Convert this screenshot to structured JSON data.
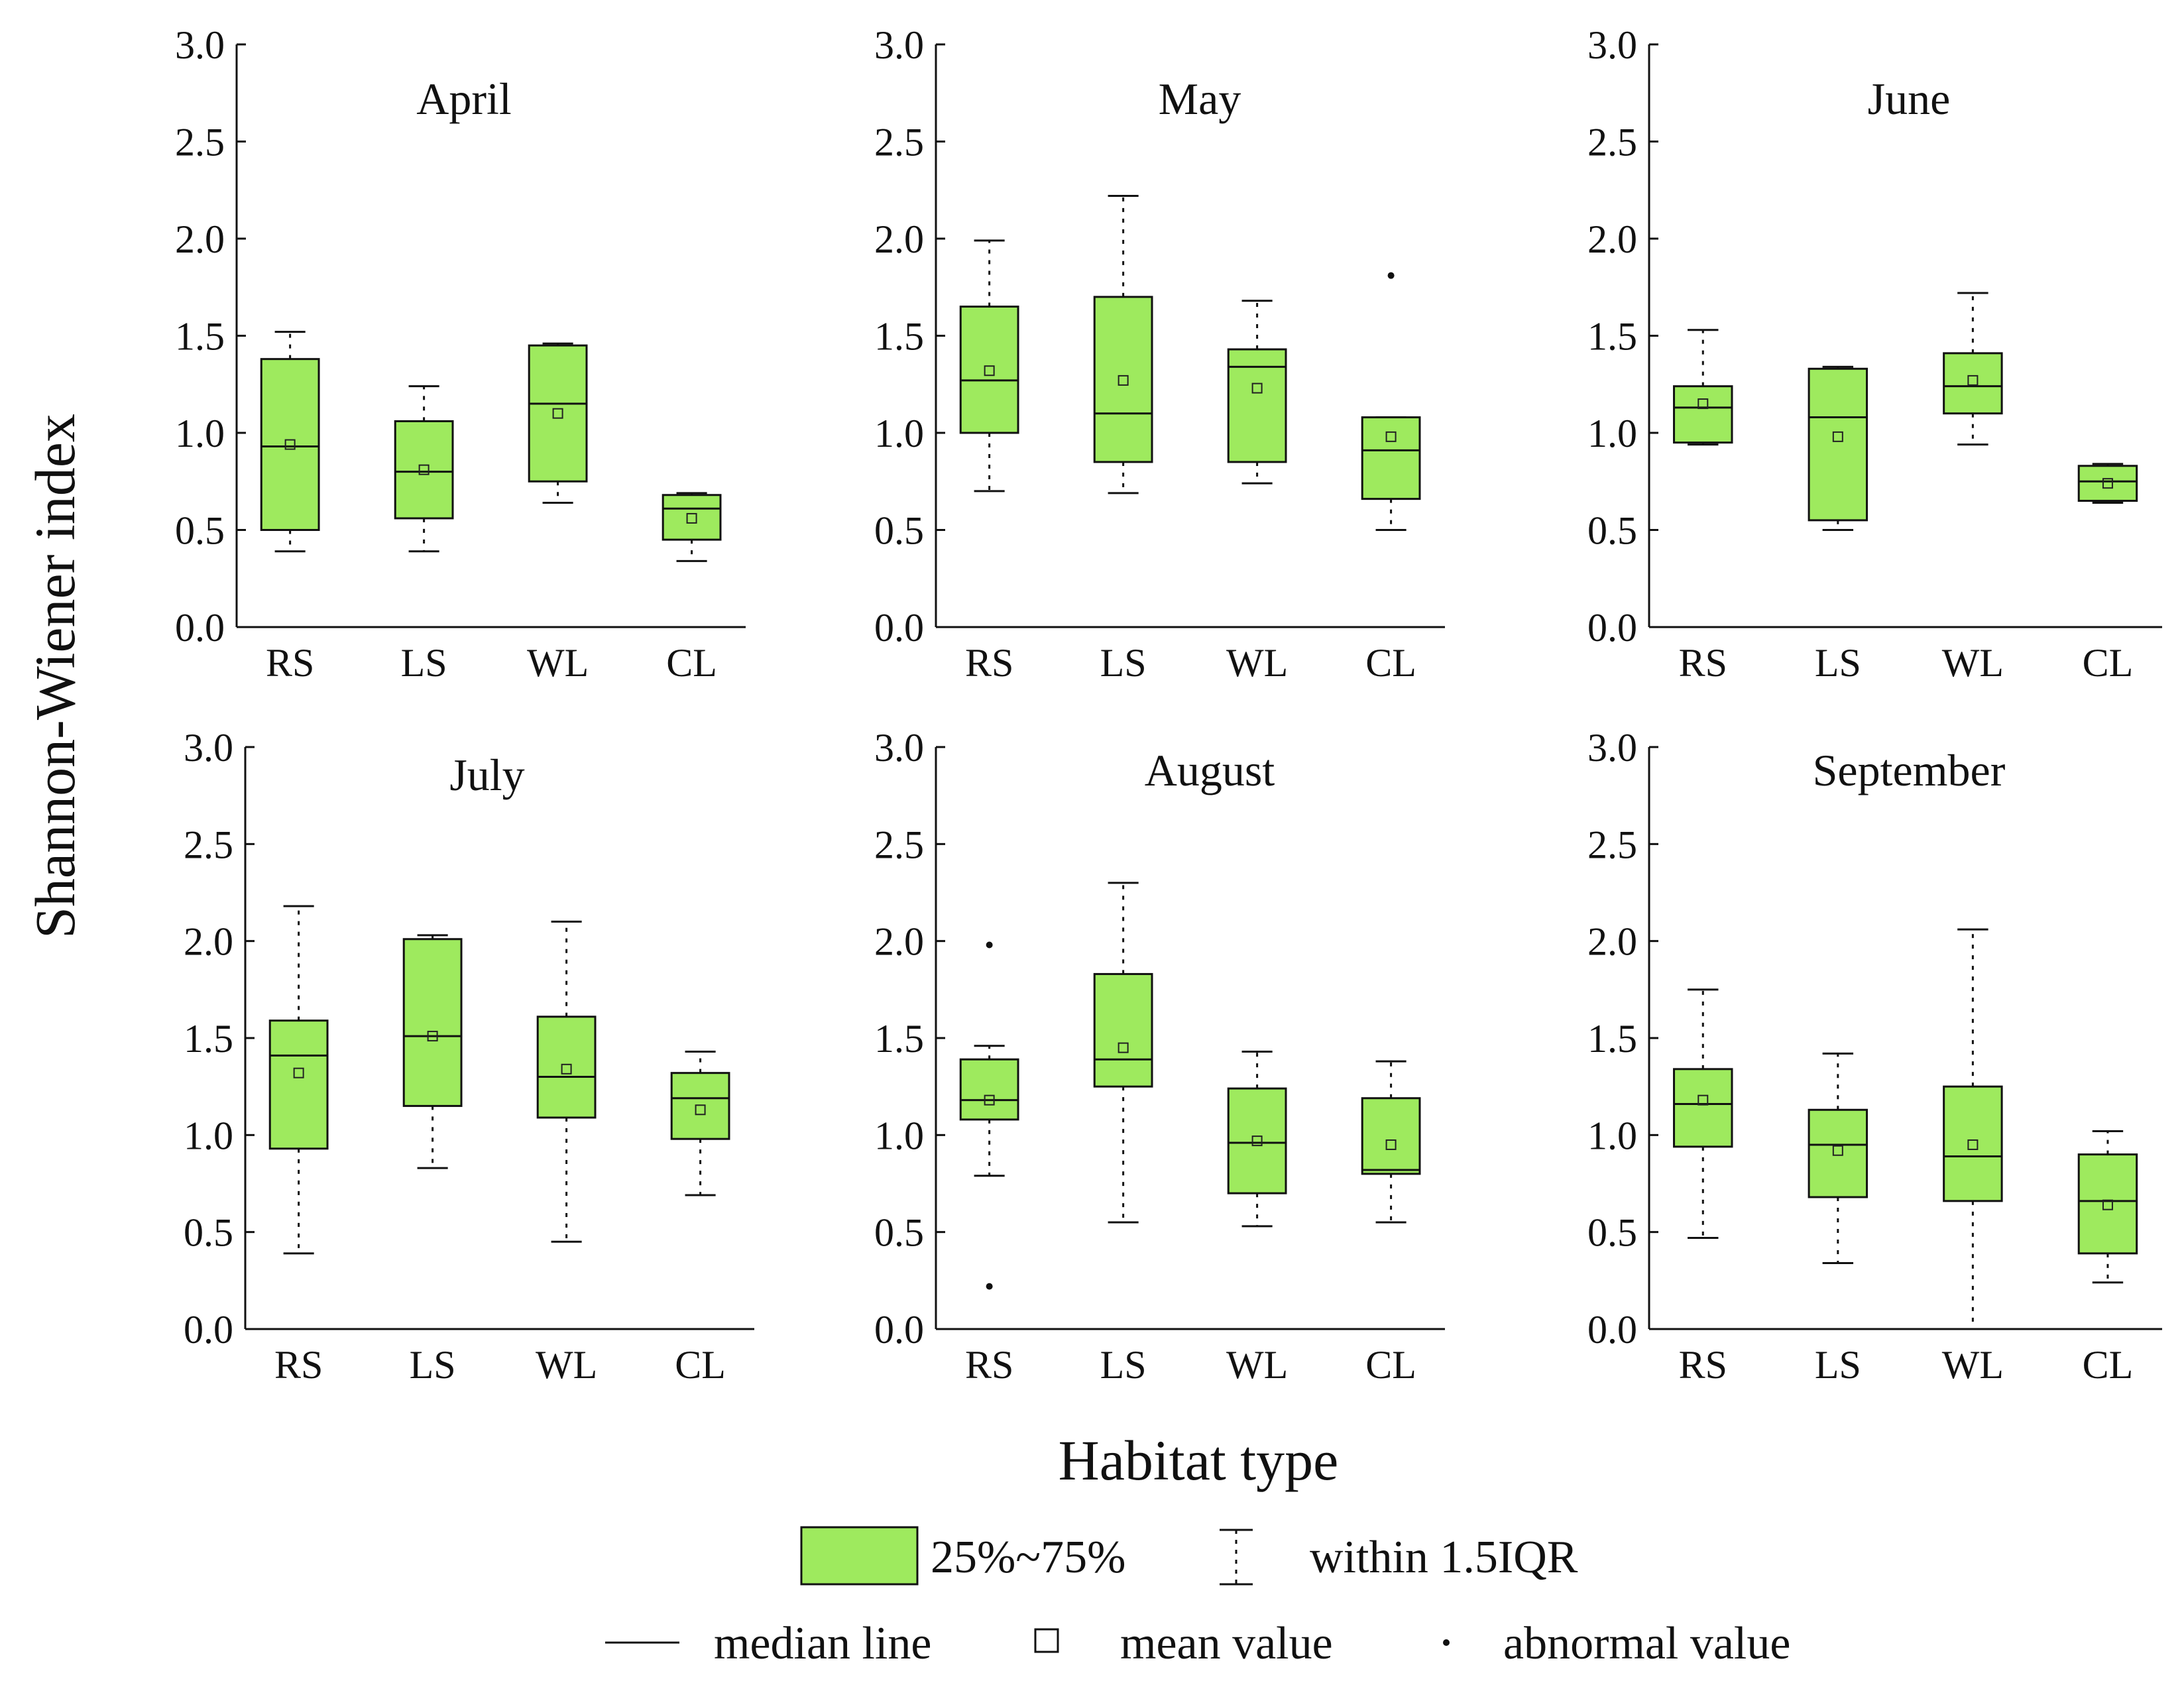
{
  "chart_data": {
    "type": "box",
    "ylabel": "Shannon-Wiener index",
    "xlabel": "Habitat type",
    "categories": [
      "RS",
      "LS",
      "WL",
      "CL"
    ],
    "ylim": [
      0,
      3
    ],
    "yticks": [
      "0.0",
      "0.5",
      "1.0",
      "1.5",
      "2.0",
      "2.5",
      "3.0"
    ],
    "box_color": "#9eea5e",
    "panels": [
      {
        "title": "April",
        "boxes": [
          {
            "category": "RS",
            "whisker_low": 0.39,
            "q1": 0.5,
            "median": 0.93,
            "q3": 1.38,
            "whisker_high": 1.52,
            "mean": 0.94,
            "outliers": []
          },
          {
            "category": "LS",
            "whisker_low": 0.39,
            "q1": 0.56,
            "median": 0.8,
            "q3": 1.06,
            "whisker_high": 1.24,
            "mean": 0.81,
            "outliers": []
          },
          {
            "category": "WL",
            "whisker_low": 0.64,
            "q1": 0.75,
            "median": 1.15,
            "q3": 1.45,
            "whisker_high": 1.46,
            "mean": 1.1,
            "outliers": []
          },
          {
            "category": "CL",
            "whisker_low": 0.34,
            "q1": 0.45,
            "median": 0.61,
            "q3": 0.68,
            "whisker_high": 0.69,
            "mean": 0.56,
            "outliers": []
          }
        ]
      },
      {
        "title": "May",
        "boxes": [
          {
            "category": "RS",
            "whisker_low": 0.7,
            "q1": 1.0,
            "median": 1.27,
            "q3": 1.65,
            "whisker_high": 1.99,
            "mean": 1.32,
            "outliers": []
          },
          {
            "category": "LS",
            "whisker_low": 0.69,
            "q1": 0.85,
            "median": 1.1,
            "q3": 1.7,
            "whisker_high": 2.22,
            "mean": 1.27,
            "outliers": []
          },
          {
            "category": "WL",
            "whisker_low": 0.74,
            "q1": 0.85,
            "median": 1.34,
            "q3": 1.43,
            "whisker_high": 1.68,
            "mean": 1.23,
            "outliers": []
          },
          {
            "category": "CL",
            "whisker_low": 0.5,
            "q1": 0.66,
            "median": 0.91,
            "q3": 1.08,
            "whisker_high": 1.08,
            "mean": 0.98,
            "outliers": [
              1.81
            ]
          }
        ]
      },
      {
        "title": "June",
        "boxes": [
          {
            "category": "RS",
            "whisker_low": 0.94,
            "q1": 0.95,
            "median": 1.13,
            "q3": 1.24,
            "whisker_high": 1.53,
            "mean": 1.15,
            "outliers": []
          },
          {
            "category": "LS",
            "whisker_low": 0.5,
            "q1": 0.55,
            "median": 1.08,
            "q3": 1.33,
            "whisker_high": 1.34,
            "mean": 0.98,
            "outliers": []
          },
          {
            "category": "WL",
            "whisker_low": 0.94,
            "q1": 1.1,
            "median": 1.24,
            "q3": 1.41,
            "whisker_high": 1.72,
            "mean": 1.27,
            "outliers": []
          },
          {
            "category": "CL",
            "whisker_low": 0.64,
            "q1": 0.65,
            "median": 0.75,
            "q3": 0.83,
            "whisker_high": 0.84,
            "mean": 0.74,
            "outliers": []
          }
        ]
      },
      {
        "title": "July",
        "boxes": [
          {
            "category": "RS",
            "whisker_low": 0.39,
            "q1": 0.93,
            "median": 1.41,
            "q3": 1.59,
            "whisker_high": 2.18,
            "mean": 1.32,
            "outliers": []
          },
          {
            "category": "LS",
            "whisker_low": 0.83,
            "q1": 1.15,
            "median": 1.51,
            "q3": 2.01,
            "whisker_high": 2.03,
            "mean": 1.51,
            "outliers": []
          },
          {
            "category": "WL",
            "whisker_low": 0.45,
            "q1": 1.09,
            "median": 1.3,
            "q3": 1.61,
            "whisker_high": 2.1,
            "mean": 1.34,
            "outliers": []
          },
          {
            "category": "CL",
            "whisker_low": 0.69,
            "q1": 0.98,
            "median": 1.19,
            "q3": 1.32,
            "whisker_high": 1.43,
            "mean": 1.13,
            "outliers": []
          }
        ]
      },
      {
        "title": "August",
        "boxes": [
          {
            "category": "RS",
            "whisker_low": 0.79,
            "q1": 1.08,
            "median": 1.18,
            "q3": 1.39,
            "whisker_high": 1.46,
            "mean": 1.18,
            "outliers": [
              1.98,
              0.22
            ]
          },
          {
            "category": "LS",
            "whisker_low": 0.55,
            "q1": 1.25,
            "median": 1.39,
            "q3": 1.83,
            "whisker_high": 2.3,
            "mean": 1.45,
            "outliers": []
          },
          {
            "category": "WL",
            "whisker_low": 0.53,
            "q1": 0.7,
            "median": 0.96,
            "q3": 1.24,
            "whisker_high": 1.43,
            "mean": 0.97,
            "outliers": []
          },
          {
            "category": "CL",
            "whisker_low": 0.55,
            "q1": 0.8,
            "median": 0.82,
            "q3": 1.19,
            "whisker_high": 1.38,
            "mean": 0.95,
            "outliers": []
          }
        ]
      },
      {
        "title": "September",
        "boxes": [
          {
            "category": "RS",
            "whisker_low": 0.47,
            "q1": 0.94,
            "median": 1.16,
            "q3": 1.34,
            "whisker_high": 1.75,
            "mean": 1.18,
            "outliers": []
          },
          {
            "category": "LS",
            "whisker_low": 0.34,
            "q1": 0.68,
            "median": 0.95,
            "q3": 1.13,
            "whisker_high": 1.42,
            "mean": 0.92,
            "outliers": []
          },
          {
            "category": "WL",
            "whisker_low": 0.0,
            "q1": 0.66,
            "median": 0.89,
            "q3": 1.25,
            "whisker_high": 2.06,
            "mean": 0.95,
            "outliers": []
          },
          {
            "category": "CL",
            "whisker_low": 0.24,
            "q1": 0.39,
            "median": 0.66,
            "q3": 0.9,
            "whisker_high": 1.02,
            "mean": 0.64,
            "outliers": []
          }
        ]
      }
    ]
  },
  "legend": {
    "box_label": "25%~75%",
    "whisker_label": "within 1.5IQR",
    "median_label": "median line",
    "mean_label": "mean value",
    "outlier_label": "abnormal value"
  }
}
